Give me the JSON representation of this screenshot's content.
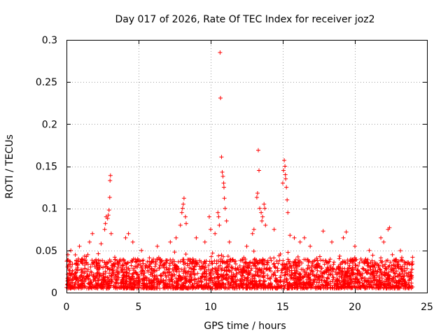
{
  "chart_data": {
    "type": "scatter",
    "title": "Day 017 of 2026, Rate Of TEC Index for receiver joz2",
    "xlabel": "GPS time / hours",
    "ylabel": "ROTI / TECUs",
    "xlim": [
      0,
      25
    ],
    "ylim": [
      0,
      0.3
    ],
    "xticks": [
      0,
      5,
      10,
      15,
      20,
      25
    ],
    "xtick_labels": [
      "0",
      "5",
      "10",
      "15",
      "20",
      "25"
    ],
    "yticks": [
      0,
      0.05,
      0.1,
      0.15,
      0.2,
      0.25,
      0.3
    ],
    "ytick_labels": [
      "0",
      "0.05",
      "0.1",
      "0.15",
      "0.2",
      "0.25",
      "0.3"
    ],
    "grid": true,
    "marker": "+",
    "color": "#ff0000",
    "data_coverage_hours": [
      0,
      24
    ],
    "baseline_band": {
      "min": 0.005,
      "typical_max": 0.04
    },
    "series": [
      {
        "name": "ROTI",
        "points": [
          {
            "x": 0.1,
            "y": 0.045
          },
          {
            "x": 0.3,
            "y": 0.05
          },
          {
            "x": 0.9,
            "y": 0.055
          },
          {
            "x": 1.6,
            "y": 0.06
          },
          {
            "x": 1.8,
            "y": 0.07
          },
          {
            "x": 2.4,
            "y": 0.058
          },
          {
            "x": 2.65,
            "y": 0.075
          },
          {
            "x": 2.7,
            "y": 0.082
          },
          {
            "x": 2.75,
            "y": 0.09
          },
          {
            "x": 2.85,
            "y": 0.088
          },
          {
            "x": 2.9,
            "y": 0.092
          },
          {
            "x": 2.95,
            "y": 0.098
          },
          {
            "x": 3.0,
            "y": 0.113
          },
          {
            "x": 3.02,
            "y": 0.133
          },
          {
            "x": 3.05,
            "y": 0.139
          },
          {
            "x": 3.1,
            "y": 0.07
          },
          {
            "x": 4.1,
            "y": 0.065
          },
          {
            "x": 4.3,
            "y": 0.07
          },
          {
            "x": 4.6,
            "y": 0.06
          },
          {
            "x": 5.2,
            "y": 0.05
          },
          {
            "x": 6.3,
            "y": 0.055
          },
          {
            "x": 7.2,
            "y": 0.06
          },
          {
            "x": 7.6,
            "y": 0.065
          },
          {
            "x": 7.9,
            "y": 0.08
          },
          {
            "x": 8.0,
            "y": 0.095
          },
          {
            "x": 8.05,
            "y": 0.1
          },
          {
            "x": 8.1,
            "y": 0.105
          },
          {
            "x": 8.15,
            "y": 0.112
          },
          {
            "x": 8.25,
            "y": 0.09
          },
          {
            "x": 8.3,
            "y": 0.082
          },
          {
            "x": 9.0,
            "y": 0.065
          },
          {
            "x": 9.6,
            "y": 0.06
          },
          {
            "x": 9.9,
            "y": 0.09
          },
          {
            "x": 10.0,
            "y": 0.075
          },
          {
            "x": 10.3,
            "y": 0.07
          },
          {
            "x": 10.5,
            "y": 0.095
          },
          {
            "x": 10.55,
            "y": 0.09
          },
          {
            "x": 10.6,
            "y": 0.08
          },
          {
            "x": 10.65,
            "y": 0.285
          },
          {
            "x": 10.68,
            "y": 0.231
          },
          {
            "x": 10.75,
            "y": 0.161
          },
          {
            "x": 10.8,
            "y": 0.143
          },
          {
            "x": 10.85,
            "y": 0.138
          },
          {
            "x": 10.9,
            "y": 0.13
          },
          {
            "x": 10.92,
            "y": 0.125
          },
          {
            "x": 10.95,
            "y": 0.112
          },
          {
            "x": 11.0,
            "y": 0.1
          },
          {
            "x": 11.1,
            "y": 0.085
          },
          {
            "x": 11.3,
            "y": 0.06
          },
          {
            "x": 12.5,
            "y": 0.055
          },
          {
            "x": 12.9,
            "y": 0.07
          },
          {
            "x": 13.0,
            "y": 0.075
          },
          {
            "x": 13.2,
            "y": 0.113
          },
          {
            "x": 13.25,
            "y": 0.118
          },
          {
            "x": 13.3,
            "y": 0.169
          },
          {
            "x": 13.35,
            "y": 0.145
          },
          {
            "x": 13.4,
            "y": 0.1
          },
          {
            "x": 13.5,
            "y": 0.095
          },
          {
            "x": 13.55,
            "y": 0.085
          },
          {
            "x": 13.6,
            "y": 0.09
          },
          {
            "x": 13.7,
            "y": 0.105
          },
          {
            "x": 13.75,
            "y": 0.1
          },
          {
            "x": 13.8,
            "y": 0.08
          },
          {
            "x": 14.4,
            "y": 0.075
          },
          {
            "x": 15.0,
            "y": 0.13
          },
          {
            "x": 15.05,
            "y": 0.145
          },
          {
            "x": 15.1,
            "y": 0.157
          },
          {
            "x": 15.15,
            "y": 0.15
          },
          {
            "x": 15.18,
            "y": 0.14
          },
          {
            "x": 15.2,
            "y": 0.135
          },
          {
            "x": 15.25,
            "y": 0.125
          },
          {
            "x": 15.3,
            "y": 0.11
          },
          {
            "x": 15.35,
            "y": 0.095
          },
          {
            "x": 15.5,
            "y": 0.068
          },
          {
            "x": 15.8,
            "y": 0.065
          },
          {
            "x": 16.2,
            "y": 0.06
          },
          {
            "x": 16.5,
            "y": 0.065
          },
          {
            "x": 16.9,
            "y": 0.055
          },
          {
            "x": 17.8,
            "y": 0.073
          },
          {
            "x": 18.4,
            "y": 0.06
          },
          {
            "x": 19.2,
            "y": 0.065
          },
          {
            "x": 19.4,
            "y": 0.072
          },
          {
            "x": 20.0,
            "y": 0.055
          },
          {
            "x": 21.0,
            "y": 0.05
          },
          {
            "x": 21.8,
            "y": 0.065
          },
          {
            "x": 22.0,
            "y": 0.06
          },
          {
            "x": 22.3,
            "y": 0.075
          },
          {
            "x": 22.4,
            "y": 0.077
          },
          {
            "x": 22.6,
            "y": 0.045
          },
          {
            "x": 23.2,
            "y": 0.038
          },
          {
            "x": 23.5,
            "y": 0.035
          },
          {
            "x": 24.0,
            "y": 0.042
          }
        ]
      }
    ]
  }
}
